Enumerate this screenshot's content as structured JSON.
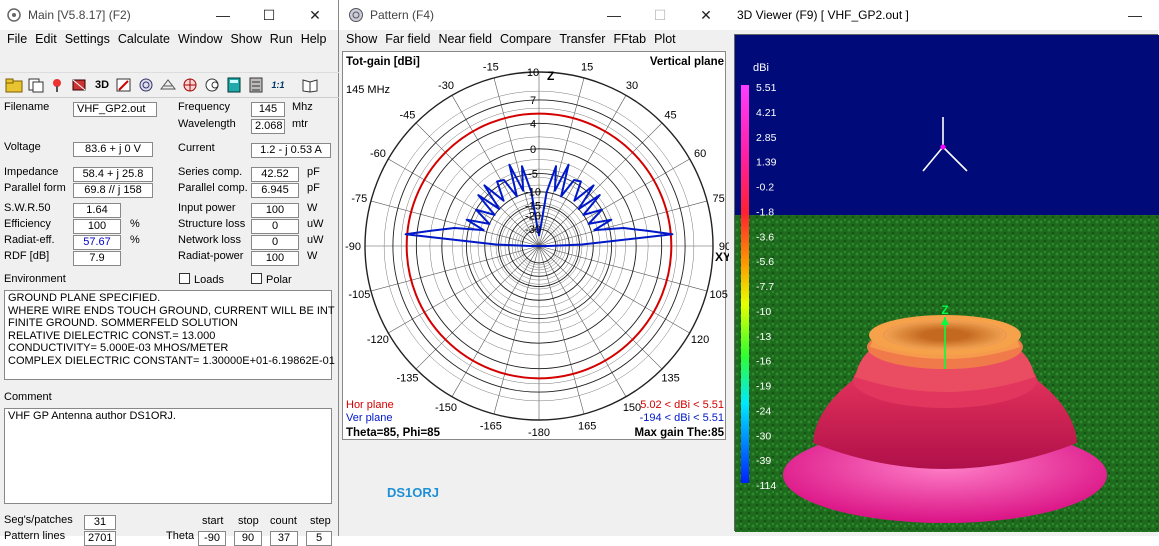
{
  "main": {
    "title": "Main [V5.8.17]  (F2)",
    "menu": [
      "File",
      "Edit",
      "Settings",
      "Calculate",
      "Window",
      "Show",
      "Run",
      "Help"
    ],
    "toolbar_labels": {
      "threed": "3D",
      "onone": "1:1"
    },
    "labels": {
      "filename": "Filename",
      "voltage": "Voltage",
      "impedance": "Impedance",
      "parallel_form": "Parallel form",
      "swr": "S.W.R.50",
      "efficiency": "Efficiency",
      "radiat_eff": "Radiat-eff.",
      "rdf": "RDF [dB]",
      "frequency": "Frequency",
      "wavelength": "Wavelength",
      "current": "Current",
      "series_comp": "Series comp.",
      "parallel_comp": "Parallel comp.",
      "input_power": "Input power",
      "structure_loss": "Structure loss",
      "network_loss": "Network loss",
      "radiat_power": "Radiat-power",
      "environment": "Environment",
      "loads": "Loads",
      "polar": "Polar",
      "comment": "Comment",
      "segs": "Seg's/patches",
      "pattern_lines": "Pattern lines",
      "theta": "Theta",
      "start": "start",
      "stop": "stop",
      "count": "count",
      "step": "step"
    },
    "values": {
      "filename": "VHF_GP2.out",
      "voltage": "83.6 + j 0 V",
      "impedance": "58.4 + j 25.8",
      "parallel_form": "69.8 // j 158",
      "swr": "1.64",
      "efficiency": "100",
      "radiat_eff": "57.67",
      "rdf": "7.9",
      "frequency": "145",
      "wavelength": "2.068",
      "current": "1.2 - j 0.53 A",
      "series_comp": "42.52",
      "parallel_comp": "6.945",
      "input_power": "100",
      "structure_loss": "0",
      "network_loss": "0",
      "radiat_power": "100",
      "segs": "31",
      "pattern_lines": "2701",
      "theta_start": "-90",
      "theta_stop": "90",
      "theta_count": "37",
      "theta_step": "5"
    },
    "units": {
      "frequency": "Mhz",
      "wavelength": "mtr",
      "series_comp": "pF",
      "parallel_comp": "pF",
      "input_power": "W",
      "structure_loss": "uW",
      "network_loss": "uW",
      "radiat_power": "W",
      "efficiency": "%",
      "radiat_eff": "%"
    },
    "environment_lines": [
      "GROUND PLANE SPECIFIED.",
      "WHERE WIRE ENDS TOUCH GROUND, CURRENT WILL BE INT",
      "FINITE GROUND.  SOMMERFELD SOLUTION",
      "RELATIVE DIELECTRIC CONST.= 13.000",
      "CONDUCTIVITY= 5.000E-03 MHOS/METER",
      "COMPLEX DIELECTRIC CONSTANT= 1.30000E+01-6.19862E-01"
    ],
    "comment_text": "VHF GP Antenna author DS1ORJ."
  },
  "pattern": {
    "title": "Pattern   (F4)",
    "menu": [
      "Show",
      "Far field",
      "Near field",
      "Compare",
      "Transfer",
      "FFtab",
      "Plot"
    ],
    "top_left": "Tot-gain [dBi]",
    "top_right": "Vertical plane",
    "freq": "145 MHz",
    "axis_z": "Z",
    "axis_xy": "XY",
    "ring_labels": [
      "10",
      "7",
      "4",
      "0",
      "-5",
      "-10",
      "-15",
      "-20",
      "-30"
    ],
    "angle_labels": [
      "-15",
      "15",
      "-30",
      "30",
      "-45",
      "45",
      "-60",
      "60",
      "-75",
      "75",
      "-90",
      "90",
      "-105",
      "105",
      "-120",
      "120",
      "-135",
      "135",
      "-150",
      "150",
      "-165",
      "165",
      "-180"
    ],
    "hor_plane": "Hor plane",
    "ver_plane": "Ver plane",
    "hor_range": "5.02 < dBi < 5.51",
    "ver_range": "-194 < dBi < 5.51",
    "theta_phi": "Theta=85, Phi=85",
    "max_gain": "Max gain The:85",
    "author": "DS1ORJ",
    "colors": {
      "hor": "#d40000",
      "ver": "#0018c8",
      "author": "#1e90d8"
    }
  },
  "viewer": {
    "title": "3D  Viewer (F9)    [  VHF_GP2.out  ]",
    "unit": "dBi",
    "scale": [
      "5.51",
      "4.21",
      "2.85",
      "1.39",
      "-0.2",
      "-1.8",
      "-3.6",
      "-5.6",
      "-7.7",
      "-10",
      "-13",
      "-16",
      "-19",
      "-24",
      "-30",
      "-39",
      "-114"
    ],
    "z_label": "Z",
    "colors": {
      "sky": "#000a78",
      "ground": "#1e6b1e",
      "pattern_outer": "#ff1f9a",
      "pattern_inner": "#f5a24a"
    }
  }
}
